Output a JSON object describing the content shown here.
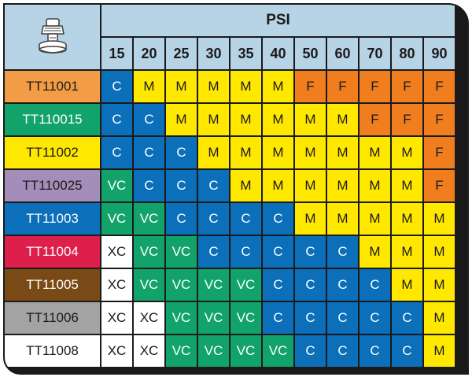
{
  "header": {
    "pressure_label": "PSI",
    "corner_icon": "spray-nozzle-icon"
  },
  "pressures": [
    "15",
    "20",
    "25",
    "30",
    "35",
    "40",
    "50",
    "60",
    "70",
    "80",
    "90"
  ],
  "category_colors": {
    "C": "#0b6fba",
    "M": "#ffe800",
    "F": "#f07d1e",
    "VC": "#12a36a",
    "XC": "#ffffff"
  },
  "rows": [
    {
      "nozzle": "TT11001",
      "color": "#f29d45",
      "text_color": "#1a1a1a",
      "values": [
        "C",
        "M",
        "M",
        "M",
        "M",
        "M",
        "F",
        "F",
        "F",
        "F",
        "F"
      ]
    },
    {
      "nozzle": "TT110015",
      "color": "#12a36a",
      "text_color": "#ffffff",
      "values": [
        "C",
        "C",
        "M",
        "M",
        "M",
        "M",
        "M",
        "M",
        "F",
        "F",
        "F"
      ]
    },
    {
      "nozzle": "TT11002",
      "color": "#ffe800",
      "text_color": "#1a1a1a",
      "values": [
        "C",
        "C",
        "C",
        "M",
        "M",
        "M",
        "M",
        "M",
        "M",
        "M",
        "F"
      ]
    },
    {
      "nozzle": "TT110025",
      "color": "#a48db8",
      "text_color": "#1a1a1a",
      "values": [
        "VC",
        "C",
        "C",
        "C",
        "M",
        "M",
        "M",
        "M",
        "M",
        "M",
        "F"
      ]
    },
    {
      "nozzle": "TT11003",
      "color": "#0b6fba",
      "text_color": "#ffffff",
      "values": [
        "VC",
        "VC",
        "C",
        "C",
        "C",
        "C",
        "M",
        "M",
        "M",
        "M",
        "M"
      ]
    },
    {
      "nozzle": "TT11004",
      "color": "#de1f4c",
      "text_color": "#ffffff",
      "values": [
        "XC",
        "VC",
        "VC",
        "C",
        "C",
        "C",
        "C",
        "C",
        "M",
        "M",
        "M"
      ]
    },
    {
      "nozzle": "TT11005",
      "color": "#7a4a16",
      "text_color": "#ffffff",
      "values": [
        "XC",
        "VC",
        "VC",
        "VC",
        "VC",
        "C",
        "C",
        "C",
        "C",
        "M",
        "M"
      ]
    },
    {
      "nozzle": "TT11006",
      "color": "#a3a3a3",
      "text_color": "#1a1a1a",
      "values": [
        "XC",
        "XC",
        "VC",
        "VC",
        "VC",
        "C",
        "C",
        "C",
        "C",
        "C",
        "M"
      ]
    },
    {
      "nozzle": "TT11008",
      "color": "#ffffff",
      "text_color": "#1a1a1a",
      "values": [
        "XC",
        "XC",
        "VC",
        "VC",
        "VC",
        "VC",
        "C",
        "C",
        "C",
        "C",
        "M"
      ]
    }
  ]
}
